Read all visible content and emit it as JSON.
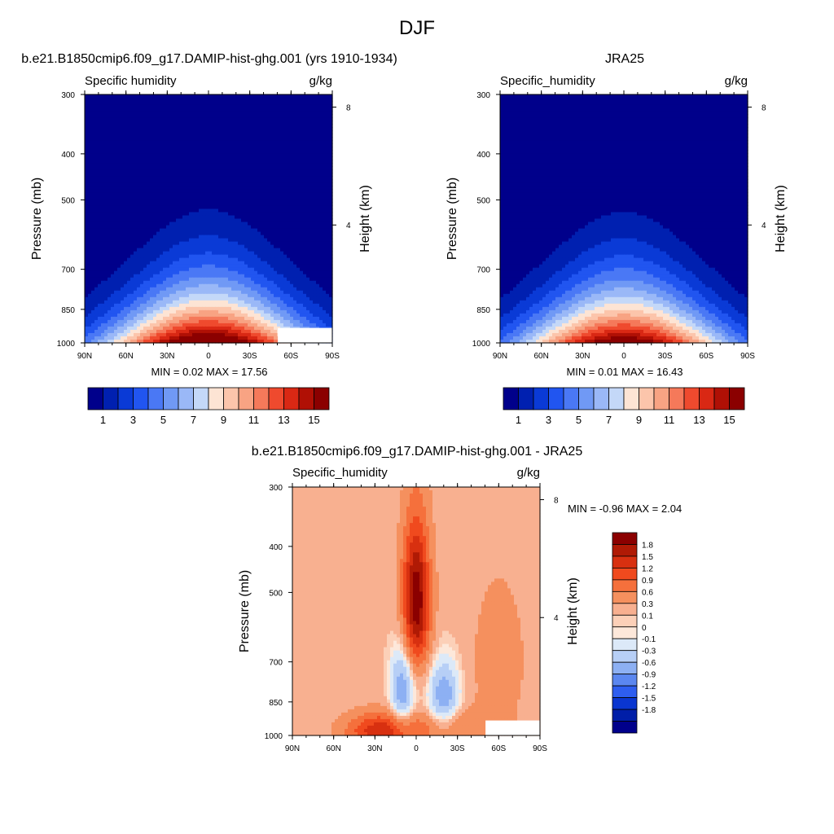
{
  "figure": {
    "title": "DJF"
  },
  "chart_data": [
    {
      "type": "heatmap",
      "title": "b.e21.B1850cmip6.f09_g17.DAMIP-hist-ghg.001 (yrs 1910-1934)",
      "left_label": "Specific humidity",
      "right_label": "g/kg",
      "xlabel": "",
      "ylabel": "Pressure (mb)",
      "y2label": "Height (km)",
      "x_ticks": [
        "90N",
        "60N",
        "30N",
        "0",
        "30S",
        "60S",
        "90S"
      ],
      "y_ticks": [
        300,
        400,
        500,
        700,
        850,
        1000
      ],
      "y2_ticks": [
        8,
        4
      ],
      "ylim": [
        1000,
        300
      ],
      "y_scale": "log",
      "min_label": "MIN =   0.02  MAX =  17.56",
      "min": 0.02,
      "max": 17.56,
      "colorbar_labels": [
        "1",
        "3",
        "5",
        "7",
        "9",
        "11",
        "13",
        "15"
      ],
      "colors": [
        "#00008b",
        "#0020b0",
        "#0a3ad6",
        "#2155f0",
        "#4a78f5",
        "#7099f5",
        "#9ab8f7",
        "#c4d8f8",
        "#fde4d4",
        "#fcc5ab",
        "#f8a383",
        "#f5795a",
        "#ef4a2e",
        "#d92814",
        "#b01005",
        "#8b0000"
      ],
      "lower_missing": true
    },
    {
      "type": "heatmap",
      "title": "JRA25",
      "left_label": "Specific_humidity",
      "right_label": "g/kg",
      "xlabel": "",
      "ylabel": "Pressure (mb)",
      "y2label": "Height (km)",
      "x_ticks": [
        "90N",
        "60N",
        "30N",
        "0",
        "30S",
        "60S",
        "90S"
      ],
      "y_ticks": [
        300,
        400,
        500,
        700,
        850,
        1000
      ],
      "y2_ticks": [
        8,
        4
      ],
      "ylim": [
        1000,
        300
      ],
      "y_scale": "log",
      "min_label": "MIN =   0.01  MAX =  16.43",
      "min": 0.01,
      "max": 16.43,
      "colorbar_labels": [
        "1",
        "3",
        "5",
        "7",
        "9",
        "11",
        "13",
        "15"
      ],
      "colors": [
        "#00008b",
        "#0020b0",
        "#0a3ad6",
        "#2155f0",
        "#4a78f5",
        "#7099f5",
        "#9ab8f7",
        "#c4d8f8",
        "#fde4d4",
        "#fcc5ab",
        "#f8a383",
        "#f5795a",
        "#ef4a2e",
        "#d92814",
        "#b01005",
        "#8b0000"
      ],
      "lower_missing": false
    },
    {
      "type": "heatmap",
      "title": "b.e21.B1850cmip6.f09_g17.DAMIP-hist-ghg.001 - JRA25",
      "left_label": "Specific_humidity",
      "right_label": "g/kg",
      "xlabel": "",
      "ylabel": "Pressure (mb)",
      "y2label": "Height (km)",
      "x_ticks": [
        "90N",
        "60N",
        "30N",
        "0",
        "30S",
        "60S",
        "90S"
      ],
      "y_ticks": [
        300,
        400,
        500,
        700,
        850,
        1000
      ],
      "y2_ticks": [
        8,
        4
      ],
      "ylim": [
        1000,
        300
      ],
      "y_scale": "log",
      "min_label": "MIN =  -0.96  MAX =   2.04",
      "min": -0.96,
      "max": 2.04,
      "colorbar_labels": [
        "1.8",
        "1.5",
        "1.2",
        "0.9",
        "0.6",
        "0.3",
        "0.1",
        "0",
        "-0.1",
        "-0.3",
        "-0.6",
        "-0.9",
        "-1.2",
        "-1.5",
        "-1.8"
      ],
      "colors": [
        "#8b0000",
        "#b01a05",
        "#d83010",
        "#f04a1e",
        "#f5703c",
        "#f5905e",
        "#f8b090",
        "#fcd0b8",
        "#fde8da",
        "#dce9f8",
        "#b7cff6",
        "#8db0f3",
        "#5b87f0",
        "#2e5ef0",
        "#0a36d0",
        "#001ea8",
        "#00008b"
      ],
      "background": "#fde8da",
      "lower_missing": true
    }
  ]
}
